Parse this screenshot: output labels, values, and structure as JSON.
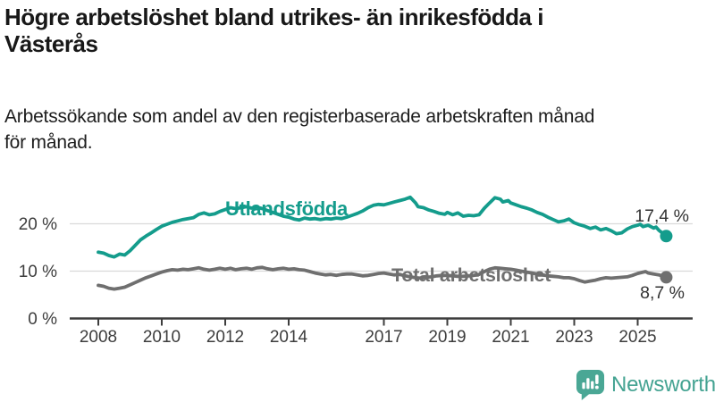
{
  "header": {
    "title": "Högre arbetslöshet bland utrikes- än inrikesfödda i\nVästerås",
    "subtitle": "Arbetssökande som andel av den registerbaserade arbetskraften månad\nför månad."
  },
  "branding": {
    "logo_text": "Newsworthy",
    "logo_icon": "bar-chart-speech-bubble-icon",
    "brand_color": "#44a392"
  },
  "chart_data": {
    "type": "line",
    "title": "Högre arbetslöshet bland utrikes- än inrikesfödda i Västerås",
    "xlabel": "",
    "ylabel": "Arbetssökande som andel av den registerbaserade arbetskraften",
    "x_unit": "year, monthly observations",
    "xlim": [
      2008,
      2026
    ],
    "ylim": [
      0,
      27
    ],
    "x_ticks": [
      2008,
      2010,
      2012,
      2014,
      2017,
      2019,
      2021,
      2023,
      2025
    ],
    "y_ticks": [
      {
        "value": 0,
        "label": "0 %"
      },
      {
        "value": 10,
        "label": "10 %"
      },
      {
        "value": 20,
        "label": "20 %"
      }
    ],
    "grid": "horizontal gridlines at 10 % and 20 %, dark baseline at 0 %",
    "legend": "inline labels on lines, end-value labels at right",
    "axis_color": "#3d3d3d",
    "gridline_color": "#dadada",
    "series": [
      {
        "name": "Utlandsfödda",
        "color": "#149c8c",
        "end_value": 17.4,
        "end_label": "17,4 %",
        "points": [
          [
            2008.0,
            14.0
          ],
          [
            2008.17,
            13.8
          ],
          [
            2008.33,
            13.3
          ],
          [
            2008.5,
            13.0
          ],
          [
            2008.67,
            13.6
          ],
          [
            2008.83,
            13.4
          ],
          [
            2009.0,
            14.3
          ],
          [
            2009.17,
            15.5
          ],
          [
            2009.33,
            16.6
          ],
          [
            2009.5,
            17.4
          ],
          [
            2009.67,
            18.1
          ],
          [
            2009.83,
            18.8
          ],
          [
            2010.0,
            19.5
          ],
          [
            2010.17,
            19.9
          ],
          [
            2010.33,
            20.3
          ],
          [
            2010.5,
            20.6
          ],
          [
            2010.67,
            20.9
          ],
          [
            2010.83,
            21.1
          ],
          [
            2011.0,
            21.3
          ],
          [
            2011.17,
            22.0
          ],
          [
            2011.33,
            22.3
          ],
          [
            2011.5,
            21.9
          ],
          [
            2011.67,
            22.1
          ],
          [
            2011.83,
            22.6
          ],
          [
            2012.0,
            23.0
          ],
          [
            2012.17,
            23.4
          ],
          [
            2012.33,
            23.2
          ],
          [
            2012.5,
            23.4
          ],
          [
            2012.67,
            23.6
          ],
          [
            2012.83,
            23.3
          ],
          [
            2013.0,
            23.5
          ],
          [
            2013.17,
            23.2
          ],
          [
            2013.33,
            22.8
          ],
          [
            2013.5,
            22.4
          ],
          [
            2013.67,
            22.0
          ],
          [
            2013.83,
            21.6
          ],
          [
            2014.0,
            21.4
          ],
          [
            2014.17,
            21.0
          ],
          [
            2014.33,
            20.8
          ],
          [
            2014.5,
            21.2
          ],
          [
            2014.67,
            21.0
          ],
          [
            2014.83,
            21.1
          ],
          [
            2015.0,
            20.9
          ],
          [
            2015.17,
            21.1
          ],
          [
            2015.33,
            21.0
          ],
          [
            2015.5,
            21.2
          ],
          [
            2015.67,
            21.1
          ],
          [
            2015.83,
            21.4
          ],
          [
            2016.0,
            21.8
          ],
          [
            2016.17,
            22.2
          ],
          [
            2016.33,
            22.7
          ],
          [
            2016.5,
            23.4
          ],
          [
            2016.67,
            23.9
          ],
          [
            2016.83,
            24.1
          ],
          [
            2017.0,
            24.0
          ],
          [
            2017.17,
            24.3
          ],
          [
            2017.33,
            24.6
          ],
          [
            2017.5,
            24.9
          ],
          [
            2017.67,
            25.2
          ],
          [
            2017.83,
            25.6
          ],
          [
            2018.0,
            24.4
          ],
          [
            2018.08,
            23.6
          ],
          [
            2018.25,
            23.4
          ],
          [
            2018.42,
            22.9
          ],
          [
            2018.58,
            22.6
          ],
          [
            2018.75,
            22.2
          ],
          [
            2018.92,
            22.0
          ],
          [
            2019.0,
            22.4
          ],
          [
            2019.17,
            21.9
          ],
          [
            2019.33,
            22.3
          ],
          [
            2019.5,
            21.6
          ],
          [
            2019.67,
            21.8
          ],
          [
            2019.83,
            21.7
          ],
          [
            2020.0,
            21.9
          ],
          [
            2020.17,
            23.3
          ],
          [
            2020.33,
            24.4
          ],
          [
            2020.5,
            25.5
          ],
          [
            2020.67,
            25.2
          ],
          [
            2020.75,
            24.6
          ],
          [
            2020.92,
            24.9
          ],
          [
            2021.0,
            24.4
          ],
          [
            2021.17,
            24.0
          ],
          [
            2021.33,
            23.6
          ],
          [
            2021.5,
            23.3
          ],
          [
            2021.67,
            22.9
          ],
          [
            2021.83,
            22.4
          ],
          [
            2022.0,
            22.0
          ],
          [
            2022.17,
            21.4
          ],
          [
            2022.33,
            20.9
          ],
          [
            2022.5,
            20.4
          ],
          [
            2022.67,
            20.6
          ],
          [
            2022.83,
            21.0
          ],
          [
            2023.0,
            20.2
          ],
          [
            2023.17,
            19.8
          ],
          [
            2023.33,
            19.5
          ],
          [
            2023.5,
            19.0
          ],
          [
            2023.67,
            19.3
          ],
          [
            2023.83,
            18.7
          ],
          [
            2024.0,
            19.0
          ],
          [
            2024.17,
            18.5
          ],
          [
            2024.33,
            17.9
          ],
          [
            2024.5,
            18.1
          ],
          [
            2024.67,
            18.9
          ],
          [
            2024.83,
            19.4
          ],
          [
            2025.0,
            19.7
          ],
          [
            2025.08,
            19.9
          ],
          [
            2025.17,
            19.4
          ],
          [
            2025.33,
            19.7
          ],
          [
            2025.5,
            19.1
          ],
          [
            2025.58,
            19.3
          ],
          [
            2025.67,
            18.6
          ],
          [
            2025.9,
            17.4
          ]
        ]
      },
      {
        "name": "Total arbetslöshet",
        "color": "#6f6f6f",
        "end_value": 8.7,
        "end_label": "8,7 %",
        "points": [
          [
            2008.0,
            7.0
          ],
          [
            2008.17,
            6.8
          ],
          [
            2008.33,
            6.4
          ],
          [
            2008.5,
            6.2
          ],
          [
            2008.67,
            6.4
          ],
          [
            2008.83,
            6.6
          ],
          [
            2009.0,
            7.1
          ],
          [
            2009.17,
            7.6
          ],
          [
            2009.33,
            8.1
          ],
          [
            2009.5,
            8.6
          ],
          [
            2009.67,
            9.0
          ],
          [
            2009.83,
            9.4
          ],
          [
            2010.0,
            9.8
          ],
          [
            2010.17,
            10.1
          ],
          [
            2010.33,
            10.3
          ],
          [
            2010.5,
            10.2
          ],
          [
            2010.67,
            10.4
          ],
          [
            2010.83,
            10.3
          ],
          [
            2011.0,
            10.5
          ],
          [
            2011.17,
            10.7
          ],
          [
            2011.33,
            10.4
          ],
          [
            2011.5,
            10.2
          ],
          [
            2011.67,
            10.4
          ],
          [
            2011.83,
            10.6
          ],
          [
            2012.0,
            10.4
          ],
          [
            2012.17,
            10.6
          ],
          [
            2012.33,
            10.3
          ],
          [
            2012.5,
            10.5
          ],
          [
            2012.67,
            10.6
          ],
          [
            2012.83,
            10.4
          ],
          [
            2013.0,
            10.7
          ],
          [
            2013.17,
            10.8
          ],
          [
            2013.33,
            10.5
          ],
          [
            2013.5,
            10.3
          ],
          [
            2013.67,
            10.5
          ],
          [
            2013.83,
            10.6
          ],
          [
            2014.0,
            10.4
          ],
          [
            2014.17,
            10.5
          ],
          [
            2014.33,
            10.3
          ],
          [
            2014.5,
            10.2
          ],
          [
            2014.67,
            9.9
          ],
          [
            2014.83,
            9.6
          ],
          [
            2015.0,
            9.4
          ],
          [
            2015.17,
            9.2
          ],
          [
            2015.33,
            9.3
          ],
          [
            2015.5,
            9.1
          ],
          [
            2015.67,
            9.3
          ],
          [
            2015.83,
            9.4
          ],
          [
            2016.0,
            9.4
          ],
          [
            2016.17,
            9.2
          ],
          [
            2016.33,
            9.0
          ],
          [
            2016.5,
            9.1
          ],
          [
            2016.67,
            9.3
          ],
          [
            2016.83,
            9.5
          ],
          [
            2017.0,
            9.6
          ],
          [
            2017.17,
            9.4
          ],
          [
            2017.33,
            9.2
          ],
          [
            2017.5,
            9.3
          ],
          [
            2017.67,
            9.0
          ],
          [
            2017.83,
            8.8
          ],
          [
            2018.0,
            8.6
          ],
          [
            2018.17,
            8.5
          ],
          [
            2018.33,
            8.7
          ],
          [
            2018.5,
            8.8
          ],
          [
            2018.67,
            9.0
          ],
          [
            2018.83,
            9.1
          ],
          [
            2019.0,
            9.1
          ],
          [
            2019.17,
            9.0
          ],
          [
            2019.33,
            8.9
          ],
          [
            2019.5,
            8.9
          ],
          [
            2019.67,
            9.0
          ],
          [
            2019.83,
            9.1
          ],
          [
            2020.0,
            9.3
          ],
          [
            2020.17,
            9.9
          ],
          [
            2020.33,
            10.4
          ],
          [
            2020.5,
            10.7
          ],
          [
            2020.67,
            10.6
          ],
          [
            2020.83,
            10.5
          ],
          [
            2021.0,
            10.4
          ],
          [
            2021.17,
            10.2
          ],
          [
            2021.33,
            10.0
          ],
          [
            2021.5,
            9.8
          ],
          [
            2021.67,
            9.6
          ],
          [
            2021.83,
            9.4
          ],
          [
            2022.0,
            9.2
          ],
          [
            2022.17,
            9.0
          ],
          [
            2022.33,
            8.9
          ],
          [
            2022.5,
            8.8
          ],
          [
            2022.67,
            8.6
          ],
          [
            2022.83,
            8.6
          ],
          [
            2023.0,
            8.4
          ],
          [
            2023.17,
            8.0
          ],
          [
            2023.33,
            7.7
          ],
          [
            2023.5,
            7.9
          ],
          [
            2023.67,
            8.1
          ],
          [
            2023.83,
            8.4
          ],
          [
            2024.0,
            8.6
          ],
          [
            2024.17,
            8.5
          ],
          [
            2024.33,
            8.6
          ],
          [
            2024.5,
            8.7
          ],
          [
            2024.67,
            8.8
          ],
          [
            2024.83,
            9.1
          ],
          [
            2025.0,
            9.5
          ],
          [
            2025.17,
            9.8
          ],
          [
            2025.25,
            9.9
          ],
          [
            2025.33,
            9.6
          ],
          [
            2025.5,
            9.4
          ],
          [
            2025.67,
            9.2
          ],
          [
            2025.9,
            8.7
          ]
        ]
      }
    ]
  }
}
